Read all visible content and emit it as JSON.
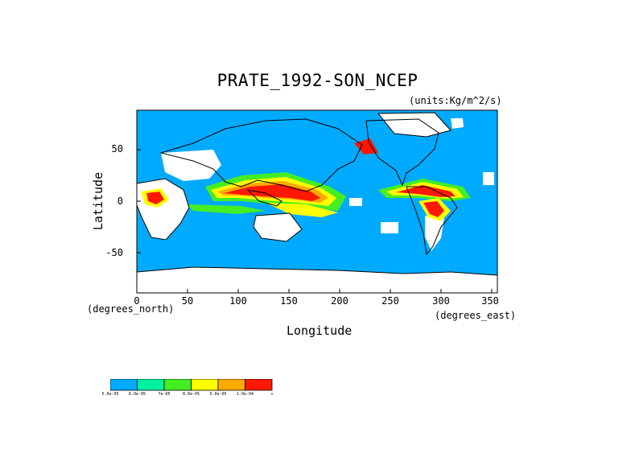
{
  "title": "PRATE_1992-SON_NCEP",
  "units": "(units:Kg/m^2/s)",
  "x_axis": {
    "label": "Longitude",
    "note": "(degrees_east)",
    "ticks": [
      "0",
      "50",
      "100",
      "150",
      "200",
      "250",
      "300",
      "350"
    ],
    "range": [
      0,
      360
    ]
  },
  "y_axis": {
    "label": "Latitude",
    "note": "(degrees_north)",
    "ticks": [
      "50",
      "0",
      "-50"
    ],
    "range": [
      -90,
      90
    ]
  },
  "colorbar": {
    "colors": [
      "#00aaff",
      "#00f0a0",
      "#44ee22",
      "#ffff00",
      "#ffaa00",
      "#ff1800"
    ],
    "labels": [
      "5.0e-05",
      "6.0e-05",
      "7e-05",
      "8.0e-05",
      "9.0e-05",
      "1.0e-04",
      "∞"
    ]
  },
  "map_colors": {
    "ocean_base": "#00aaff",
    "missing": "#ffffff",
    "coast": "#000000"
  }
}
